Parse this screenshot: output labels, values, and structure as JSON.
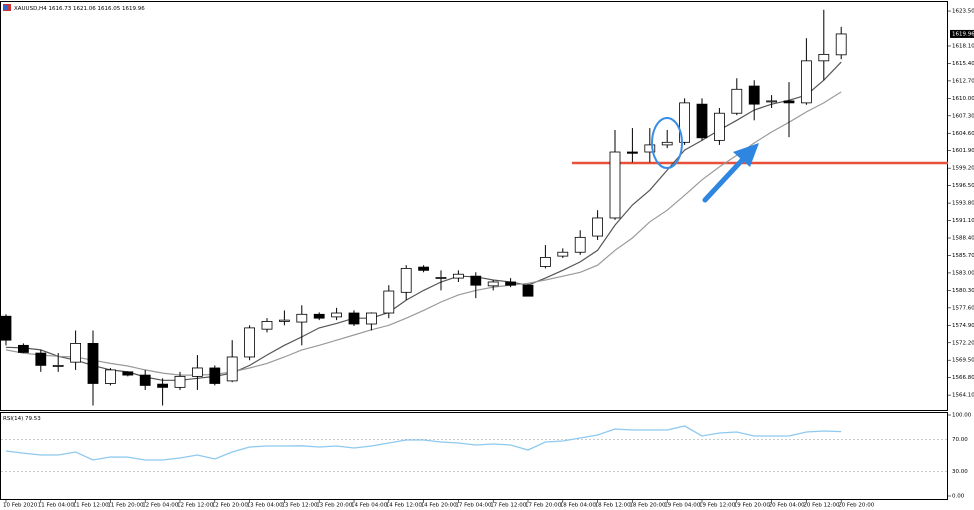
{
  "chart_data": [
    {
      "type": "candlestick",
      "title": "XAUUSD,H4",
      "categories": [
        "10 Feb 2020",
        null,
        "11 Feb 04:00",
        null,
        "11 Feb 12:00",
        null,
        "11 Feb 20:00",
        null,
        "12 Feb 04:00",
        null,
        "12 Feb 12:00",
        null,
        "12 Feb 20:00",
        null,
        "13 Feb 04:00",
        null,
        "13 Feb 12:00",
        null,
        "13 Feb 20:00",
        null,
        "14 Feb 04:00",
        null,
        "14 Feb 12:00",
        null,
        "14 Feb 20:00",
        null,
        "17 Feb 04:00",
        null,
        "17 Feb 12:00",
        null,
        "17 Feb 20:00",
        null,
        "18 Feb 04:00",
        null,
        "18 Feb 12:00",
        null,
        "18 Feb 20:00",
        null,
        "19 Feb 04:00",
        null,
        "19 Feb 12:00",
        null,
        "19 Feb 20:00",
        null,
        "20 Feb 04:00",
        null,
        "20 Feb 12:00",
        null,
        "20 Feb 20:00"
      ],
      "open": [
        1576.3,
        1571.8,
        1570.6,
        1568.6,
        1569.2,
        1572.1,
        1565.9,
        1567.7,
        1567.2,
        1565.8,
        1565.3,
        1567.0,
        1568.3,
        1566.3,
        1570.0,
        1574.3,
        1575.5,
        1575.4,
        1576.6,
        1576.2,
        1576.8,
        1575.1,
        1576.8,
        1580.0,
        1583.9,
        1582.2,
        1582.2,
        1582.5,
        1581.0,
        1581.6,
        1581.1,
        1584.0,
        1585.6,
        1586.2,
        1588.7,
        1591.5,
        1601.7,
        1601.7,
        1602.8,
        1603.2,
        1609.1,
        1603.5,
        1607.7,
        1611.9,
        1609.5,
        1609.6,
        1609.3,
        1615.8,
        1616.73
      ],
      "high": [
        1576.6,
        1572.1,
        1571.1,
        1570.6,
        1574.1,
        1574.1,
        1568.3,
        1567.8,
        1568.0,
        1566.7,
        1567.7,
        1570.3,
        1568.7,
        1572.6,
        1574.9,
        1576.0,
        1577.2,
        1578.0,
        1576.9,
        1577.6,
        1577.2,
        1576.9,
        1581.1,
        1584.2,
        1584.2,
        1583.4,
        1583.4,
        1583.1,
        1581.9,
        1582.2,
        1581.3,
        1587.3,
        1586.8,
        1589.6,
        1592.7,
        1605.1,
        1605.4,
        1605.4,
        1605.1,
        1610.0,
        1610.0,
        1608.5,
        1613.1,
        1612.8,
        1610.5,
        1612.5,
        1619.3,
        1623.7,
        1621.06
      ],
      "low": [
        1571.8,
        1570.6,
        1567.7,
        1567.7,
        1568.0,
        1562.5,
        1565.6,
        1567.0,
        1564.9,
        1562.5,
        1564.9,
        1564.9,
        1565.6,
        1566.1,
        1569.5,
        1573.8,
        1574.9,
        1571.8,
        1575.7,
        1575.7,
        1574.8,
        1574.1,
        1576.0,
        1578.8,
        1583.1,
        1580.3,
        1581.6,
        1579.1,
        1580.3,
        1580.8,
        1579.4,
        1583.7,
        1585.3,
        1585.8,
        1588.1,
        1591.2,
        1600.1,
        1600.1,
        1602.3,
        1602.8,
        1603.5,
        1602.8,
        1607.4,
        1606.6,
        1608.5,
        1604.0,
        1609.0,
        1612.8,
        1616.05
      ],
      "close": [
        1572.6,
        1570.7,
        1568.7,
        1568.7,
        1572.1,
        1565.9,
        1568.0,
        1567.2,
        1565.6,
        1565.3,
        1567.0,
        1568.3,
        1565.9,
        1570.0,
        1574.5,
        1575.5,
        1575.7,
        1576.6,
        1576.0,
        1576.8,
        1575.1,
        1576.8,
        1580.2,
        1583.7,
        1583.4,
        1582.3,
        1582.8,
        1581.1,
        1581.6,
        1581.1,
        1579.4,
        1585.4,
        1586.2,
        1588.5,
        1591.5,
        1601.7,
        1601.5,
        1602.8,
        1603.2,
        1609.3,
        1603.9,
        1607.7,
        1611.4,
        1609.1,
        1609.6,
        1609.3,
        1615.8,
        1616.8,
        1619.96
      ],
      "up_color": "#ffffff",
      "down_color": "#000000",
      "lines": [
        {
          "color": "#555555",
          "values": [
            1571.5,
            1571.4,
            1571.1,
            1570.1,
            1569.5,
            1568.7,
            1568.0,
            1567.7,
            1566.9,
            1566.4,
            1566.4,
            1566.7,
            1567.0,
            1567.5,
            1568.7,
            1570.3,
            1571.8,
            1573.1,
            1574.5,
            1575.2,
            1576.0,
            1576.0,
            1576.9,
            1578.8,
            1580.3,
            1581.6,
            1582.5,
            1582.4,
            1581.9,
            1581.6,
            1581.1,
            1582.2,
            1583.4,
            1584.7,
            1586.5,
            1590.4,
            1593.5,
            1595.8,
            1598.9,
            1602.0,
            1603.5,
            1605.1,
            1606.6,
            1608.2,
            1609.1,
            1609.7,
            1610.5,
            1612.8,
            1615.6
          ]
        },
        {
          "color": "#9a9a9a",
          "values": [
            1571.1,
            1570.6,
            1570.3,
            1570.1,
            1570.0,
            1569.5,
            1569.0,
            1568.6,
            1568.0,
            1567.5,
            1567.2,
            1567.2,
            1567.3,
            1567.7,
            1568.3,
            1569.0,
            1570.0,
            1571.1,
            1571.8,
            1572.6,
            1573.4,
            1574.2,
            1574.9,
            1576.0,
            1577.2,
            1578.5,
            1579.6,
            1580.3,
            1580.8,
            1581.1,
            1581.4,
            1581.9,
            1582.5,
            1583.1,
            1584.2,
            1586.5,
            1588.4,
            1590.9,
            1592.7,
            1595.0,
            1597.4,
            1599.4,
            1601.2,
            1603.1,
            1604.8,
            1606.3,
            1607.9,
            1609.3,
            1611.0
          ]
        }
      ],
      "hline": {
        "value": 1600.0,
        "color": "#e8503a"
      },
      "ylim": [
        1561.8,
        1624.9
      ],
      "yticks": [
        {
          "value": 1623.5,
          "label": "1623.50"
        },
        {
          "value": 1618.1,
          "label": "1618.10"
        },
        {
          "value": 1615.4,
          "label": "1615.40"
        },
        {
          "value": 1612.7,
          "label": "1612.70"
        },
        {
          "value": 1610,
          "label": "1610.00"
        },
        {
          "value": 1607.3,
          "label": "1607.30"
        },
        {
          "value": 1604.6,
          "label": "1604.60"
        },
        {
          "value": 1601.9,
          "label": "1601.90"
        },
        {
          "value": 1599.2,
          "label": "1599.20"
        },
        {
          "value": 1596.5,
          "label": "1596.50"
        },
        {
          "value": 1593.8,
          "label": "1593.80"
        },
        {
          "value": 1591.1,
          "label": "1591.10"
        },
        {
          "value": 1588.4,
          "label": "1588.40"
        },
        {
          "value": 1585.7,
          "label": "1585.70"
        },
        {
          "value": 1583,
          "label": "1583.00"
        },
        {
          "value": 1580.3,
          "label": "1580.30"
        },
        {
          "value": 1577.6,
          "label": "1577.60"
        },
        {
          "value": 1574.9,
          "label": "1574.90"
        },
        {
          "value": 1572.2,
          "label": "1572.20"
        },
        {
          "value": 1569.5,
          "label": "1569.50"
        },
        {
          "value": 1566.8,
          "label": "1566.80"
        },
        {
          "value": 1564.1,
          "label": "1564.10"
        }
      ]
    },
    {
      "type": "line",
      "title": "RSI(14)",
      "color": "#8ec9f0",
      "values": [
        55.6,
        53.0,
        50.6,
        50.6,
        54.3,
        44.4,
        48.1,
        48.0,
        44.4,
        44.4,
        46.9,
        50.6,
        45.7,
        54.3,
        60.5,
        61.7,
        61.7,
        62.0,
        60.5,
        61.7,
        59.3,
        61.7,
        65.4,
        69.1,
        69.1,
        66.7,
        65.4,
        63.0,
        64.2,
        63.0,
        56.8,
        66.7,
        67.9,
        71.6,
        75.3,
        82.7,
        81.5,
        81.5,
        81.5,
        86.4,
        74.1,
        77.8,
        79.0,
        74.1,
        74.1,
        74.1,
        79.0,
        80.2,
        79.53
      ],
      "ylim": [
        0,
        100
      ],
      "yticks": [
        {
          "value": 100,
          "label": "100.00"
        },
        {
          "value": 70,
          "label": "70.00"
        },
        {
          "value": 30,
          "label": "30.00"
        },
        {
          "value": 0,
          "label": "0.00"
        }
      ]
    }
  ]
}
